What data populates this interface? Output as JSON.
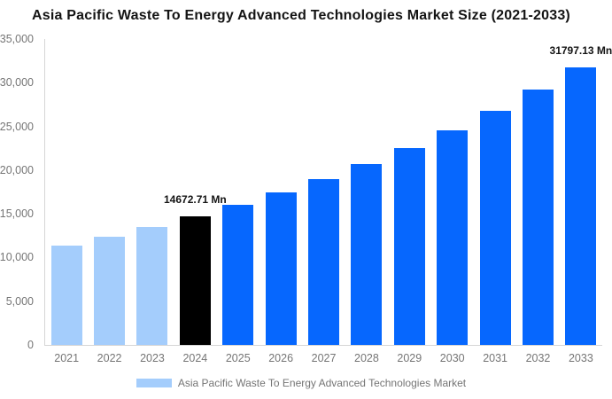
{
  "title": "Asia Pacific Waste To Energy Advanced Technologies Market Size (2021-2033)",
  "legend": {
    "label": "Asia Pacific Waste To Energy Advanced Technologies Market"
  },
  "colors": {
    "historical": "#A4CDFC",
    "base_year": "#000000",
    "forecast": "#0667FE",
    "axis_line": "#d5d5d5",
    "axis_text": "#757575",
    "title_text": "#141414",
    "data_label_text": "#141414",
    "background": "#ffffff"
  },
  "y_axis": {
    "max": 35000,
    "tick_labels_bottom_to_top": [
      "0",
      "5,000",
      "10,000",
      "15,000",
      "20,000",
      "25,000",
      "30,000",
      "35,000"
    ]
  },
  "chart_data": {
    "type": "bar",
    "title": "Asia Pacific Waste To Energy Advanced Technologies Market Size (2021-2033)",
    "xlabel": "",
    "ylabel": "",
    "ylim": [
      0,
      35000
    ],
    "grid": false,
    "legend_position": "bottom",
    "categories": [
      "2021",
      "2022",
      "2023",
      "2024",
      "2025",
      "2026",
      "2027",
      "2028",
      "2029",
      "2030",
      "2031",
      "2032",
      "2033"
    ],
    "values": [
      11338,
      12355,
      13464,
      14672.71,
      15990,
      17424,
      18988,
      20692,
      22549,
      24573,
      26778,
      29182,
      31797.13
    ],
    "bar_styles": [
      "historical",
      "historical",
      "historical",
      "base_year",
      "forecast",
      "forecast",
      "forecast",
      "forecast",
      "forecast",
      "forecast",
      "forecast",
      "forecast",
      "forecast"
    ],
    "data_labels": [
      {
        "index": 3,
        "text": "14672.71 Mn"
      },
      {
        "index": 12,
        "text": "31797.13 Mn"
      }
    ],
    "unit": "Mn"
  }
}
